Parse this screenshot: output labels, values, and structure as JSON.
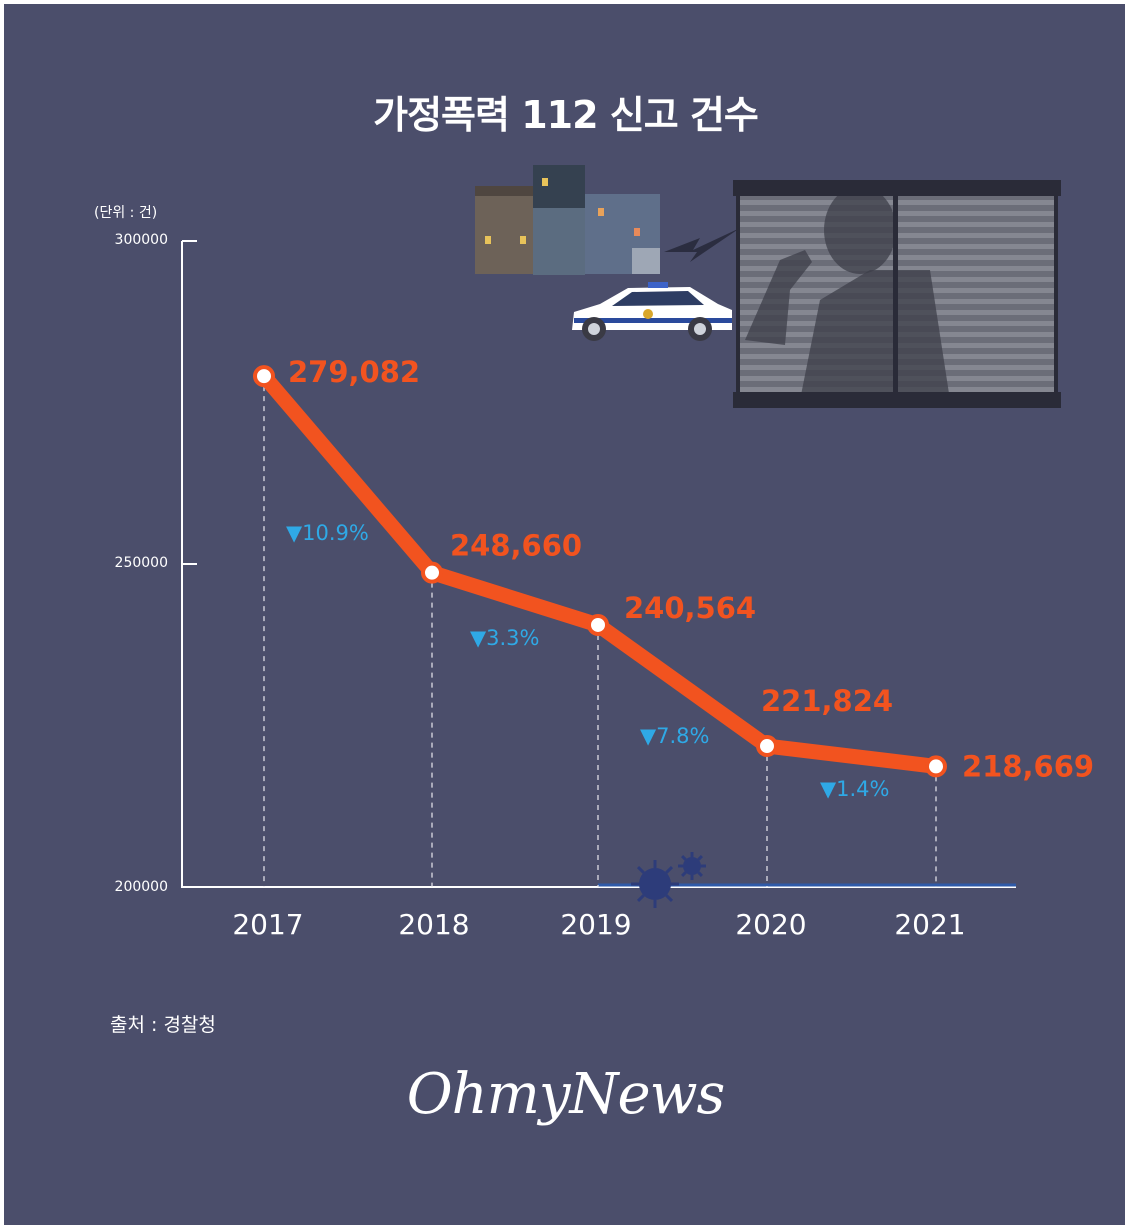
{
  "title": "가정폭력 112 신고 건수",
  "unit_label": "(단위 : 건)",
  "source": "출처 : 경찰청",
  "logo_text": "OhmyNews",
  "colors": {
    "background": "#4b4e6b",
    "line": "#f2531f",
    "value_label": "#f2531f",
    "change_label": "#2fa9e6",
    "axis": "#ffffff",
    "baseline_covid": "#2f5aa8"
  },
  "illustration": {
    "buildings": "building-icon",
    "police_car": "police-car-icon",
    "window": "window-silhouette-icon",
    "virus": "virus-icon"
  },
  "chart_data": {
    "type": "line",
    "title": "가정폭력 112 신고 건수",
    "categories": [
      "2017",
      "2018",
      "2019",
      "2020",
      "2021"
    ],
    "values": [
      279082,
      248660,
      240564,
      221824,
      218669
    ],
    "value_labels": [
      "279,082",
      "248,660",
      "240,564",
      "221,824",
      "218,669"
    ],
    "changes": [
      "▼10.9%",
      "▼3.3%",
      "▼7.8%",
      "▼1.4%"
    ],
    "yticks": [
      "300000",
      "250000",
      "200000"
    ],
    "ylim": [
      200000,
      300000
    ],
    "grid": false,
    "legend": "none"
  }
}
